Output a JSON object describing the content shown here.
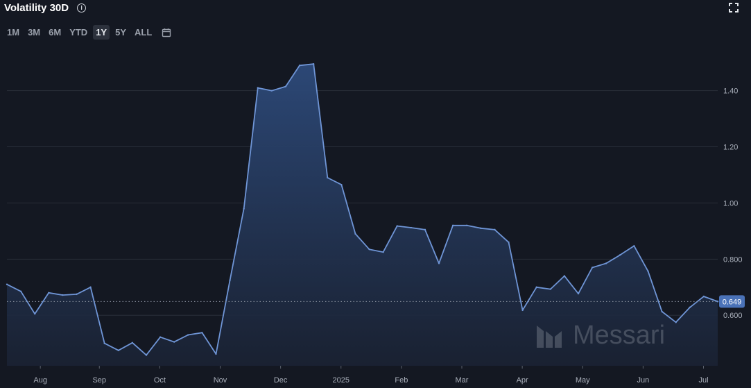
{
  "header": {
    "title": "Volatility 30D",
    "info_icon": "info-icon",
    "expand_icon": "fullscreen-icon"
  },
  "ranges": [
    {
      "label": "1M",
      "active": false
    },
    {
      "label": "3M",
      "active": false
    },
    {
      "label": "6M",
      "active": false
    },
    {
      "label": "YTD",
      "active": false
    },
    {
      "label": "1Y",
      "active": true
    },
    {
      "label": "5Y",
      "active": false
    },
    {
      "label": "ALL",
      "active": false
    }
  ],
  "calendar_icon": "calendar-icon",
  "watermark": "Messari",
  "colors": {
    "background": "#141822",
    "line": "#6f95d6",
    "area_top": "#2d4a7a",
    "grid": "#2a2f3a",
    "current_badge": "#4a72b8"
  },
  "chart_data": {
    "type": "area",
    "title": "",
    "xlabel": "",
    "ylabel": "",
    "ylim": [
      0.42,
      1.55
    ],
    "yticks": [
      0.6,
      0.8,
      1.0,
      1.2,
      1.4
    ],
    "ytick_labels": [
      "0.600",
      "0.800",
      "1.00",
      "1.20",
      "1.40"
    ],
    "xtick_labels": [
      "Aug",
      "Sep",
      "Oct",
      "Nov",
      "Dec",
      "2025",
      "Feb",
      "Mar",
      "Apr",
      "May",
      "Jun",
      "Jul"
    ],
    "current_value": 0.649,
    "current_label": "0.649",
    "grid": true,
    "series": [
      {
        "values": [
          0.71,
          0.685,
          0.605,
          0.68,
          0.672,
          0.675,
          0.7,
          0.5,
          0.475,
          0.502,
          0.458,
          0.522,
          0.505,
          0.53,
          0.538,
          0.462,
          0.725,
          0.98,
          1.41,
          1.4,
          1.415,
          1.49,
          1.495,
          1.09,
          1.065,
          0.89,
          0.835,
          0.825,
          0.918,
          0.912,
          0.905,
          0.785,
          0.92,
          0.92,
          0.91,
          0.905,
          0.86,
          0.618,
          0.7,
          0.693,
          0.74,
          0.677,
          0.77,
          0.785,
          0.815,
          0.847,
          0.757,
          0.613,
          0.575,
          0.628,
          0.667,
          0.649
        ]
      }
    ]
  }
}
